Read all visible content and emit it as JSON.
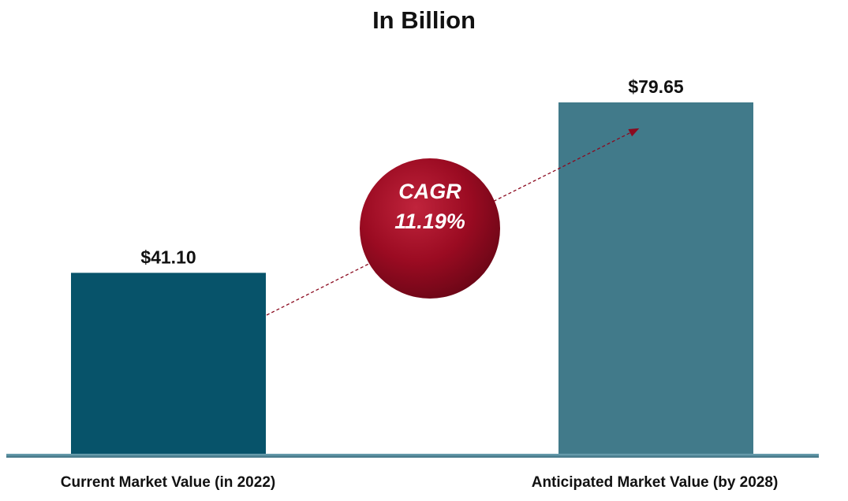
{
  "chart_data": {
    "type": "bar",
    "title": "In Billion",
    "categories": [
      "Current Market Value (in 2022)",
      "Anticipated Market Value (by 2028)"
    ],
    "values": [
      41.1,
      79.65
    ],
    "value_labels": [
      "$41.10",
      "$79.65"
    ],
    "bar_colors": [
      "#07536a",
      "#417a8a"
    ],
    "annotation": {
      "line1": "CAGR",
      "line2": "11.19%",
      "color": "#9b0b22"
    },
    "xlabel": "",
    "ylabel": "",
    "grid": false,
    "legend": "none"
  }
}
